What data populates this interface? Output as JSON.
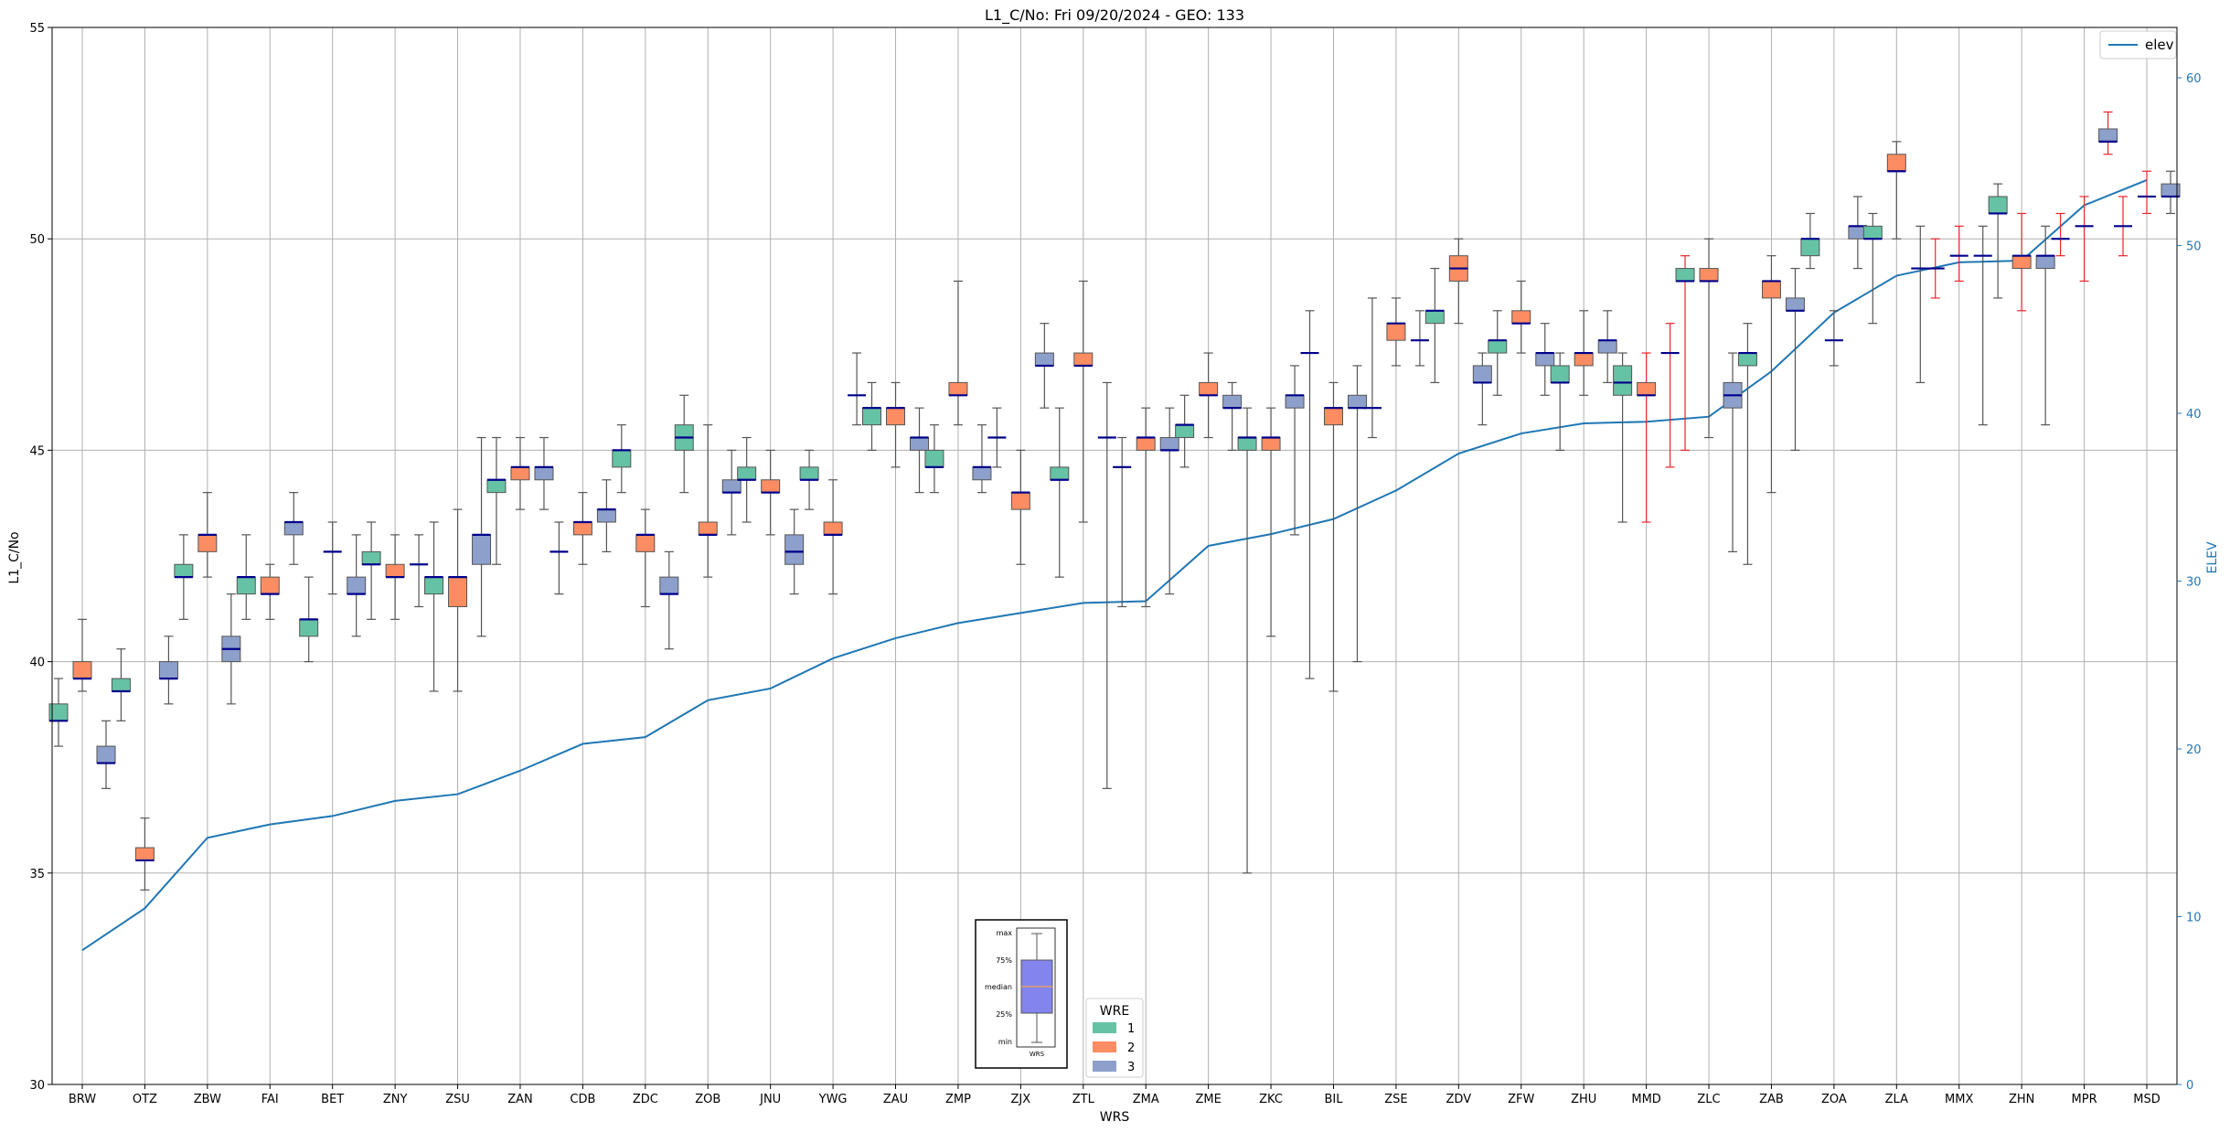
{
  "chart_data": {
    "type": "box",
    "title": "L1_C/No: Fri 09/20/2024 - GEO: 133",
    "xlabel": "WRS",
    "ylabel": "L1_C/No",
    "y2label": "ELEV",
    "ylim": [
      30,
      55
    ],
    "y2lim": [
      0,
      63
    ],
    "yticks": [
      30,
      35,
      40,
      45,
      50,
      55
    ],
    "y2ticks": [
      0,
      10,
      20,
      30,
      40,
      50,
      60
    ],
    "grid": true,
    "categories": [
      "BRW",
      "OTZ",
      "ZBW",
      "FAI",
      "BET",
      "ZNY",
      "ZSU",
      "ZAN",
      "CDB",
      "ZDC",
      "ZOB",
      "JNU",
      "YWG",
      "ZAU",
      "ZMP",
      "ZJX",
      "ZTL",
      "ZMA",
      "ZME",
      "ZKC",
      "BIL",
      "ZSE",
      "ZDV",
      "ZFW",
      "ZHU",
      "MMD",
      "ZLC",
      "ZAB",
      "ZOA",
      "ZLA",
      "MMX",
      "ZHN",
      "MPR",
      "MSD"
    ],
    "elev": {
      "name": "elev",
      "values": [
        8.0,
        10.5,
        14.7,
        15.5,
        16.0,
        16.9,
        17.3,
        18.7,
        20.3,
        20.7,
        22.9,
        23.6,
        25.4,
        26.6,
        27.5,
        28.1,
        28.7,
        28.8,
        32.1,
        32.8,
        33.7,
        35.4,
        37.6,
        38.8,
        39.4,
        39.5,
        39.8,
        42.5,
        46.0,
        48.2,
        49.0,
        49.1,
        52.4,
        53.9
      ]
    },
    "wre_colors": {
      "1": "#66c2a5",
      "2": "#fc8d62",
      "3": "#8da0cb"
    },
    "elev_color": "#1f77b4",
    "red_whisker_color": "#e8262b",
    "legend_elev": {
      "label": "elev",
      "placement": "top-right"
    },
    "legend_wre": {
      "title": "WRE",
      "entries": [
        "1",
        "2",
        "3"
      ],
      "placement": "bottom-center"
    },
    "key_labels": [
      "max",
      "75%",
      "median",
      "25%",
      "min"
    ],
    "key_xlabel": "WRS",
    "series": [
      {
        "cat": "BRW",
        "wre": 1,
        "min": 38.0,
        "q1": 38.6,
        "med": 38.6,
        "q3": 39.0,
        "max": 39.6
      },
      {
        "cat": "BRW",
        "wre": 2,
        "min": 39.3,
        "q1": 39.6,
        "med": 39.6,
        "q3": 40.0,
        "max": 41.0
      },
      {
        "cat": "BRW",
        "wre": 3,
        "min": 37.0,
        "q1": 37.6,
        "med": 37.6,
        "q3": 38.0,
        "max": 38.6
      },
      {
        "cat": "OTZ",
        "wre": 1,
        "min": 38.6,
        "q1": 39.3,
        "med": 39.3,
        "q3": 39.6,
        "max": 40.3
      },
      {
        "cat": "OTZ",
        "wre": 2,
        "min": 34.6,
        "q1": 35.3,
        "med": 35.3,
        "q3": 35.6,
        "max": 36.3
      },
      {
        "cat": "OTZ",
        "wre": 3,
        "min": 39.0,
        "q1": 39.6,
        "med": 39.6,
        "q3": 40.0,
        "max": 40.6
      },
      {
        "cat": "ZBW",
        "wre": 1,
        "min": 41.0,
        "q1": 42.0,
        "med": 42.0,
        "q3": 42.3,
        "max": 43.0
      },
      {
        "cat": "ZBW",
        "wre": 2,
        "min": 42.0,
        "q1": 42.6,
        "med": 43.0,
        "q3": 43.0,
        "max": 44.0
      },
      {
        "cat": "ZBW",
        "wre": 3,
        "min": 39.0,
        "q1": 40.0,
        "med": 40.3,
        "q3": 40.6,
        "max": 41.6
      },
      {
        "cat": "FAI",
        "wre": 1,
        "min": 41.0,
        "q1": 41.6,
        "med": 42.0,
        "q3": 42.0,
        "max": 43.0
      },
      {
        "cat": "FAI",
        "wre": 2,
        "min": 41.0,
        "q1": 41.6,
        "med": 41.6,
        "q3": 42.0,
        "max": 42.3
      },
      {
        "cat": "FAI",
        "wre": 3,
        "min": 42.3,
        "q1": 43.0,
        "med": 43.3,
        "q3": 43.3,
        "max": 44.0
      },
      {
        "cat": "BET",
        "wre": 1,
        "min": 40.0,
        "q1": 40.6,
        "med": 41.0,
        "q3": 41.0,
        "max": 42.0
      },
      {
        "cat": "BET",
        "wre": 2,
        "min": 41.6,
        "q1": 42.6,
        "med": 42.6,
        "q3": 42.6,
        "max": 43.3
      },
      {
        "cat": "BET",
        "wre": 3,
        "min": 40.6,
        "q1": 41.6,
        "med": 41.6,
        "q3": 42.0,
        "max": 43.0
      },
      {
        "cat": "ZNY",
        "wre": 1,
        "min": 41.0,
        "q1": 42.3,
        "med": 42.3,
        "q3": 42.6,
        "max": 43.3
      },
      {
        "cat": "ZNY",
        "wre": 2,
        "min": 41.0,
        "q1": 42.0,
        "med": 42.0,
        "q3": 42.3,
        "max": 43.0
      },
      {
        "cat": "ZNY",
        "wre": 3,
        "min": 41.3,
        "q1": 42.3,
        "med": 42.3,
        "q3": 42.3,
        "max": 43.0
      },
      {
        "cat": "ZSU",
        "wre": 1,
        "min": 39.3,
        "q1": 41.6,
        "med": 42.0,
        "q3": 42.0,
        "max": 43.3
      },
      {
        "cat": "ZSU",
        "wre": 2,
        "min": 39.3,
        "q1": 41.3,
        "med": 42.0,
        "q3": 42.0,
        "max": 43.6
      },
      {
        "cat": "ZSU",
        "wre": 3,
        "min": 40.6,
        "q1": 42.3,
        "med": 43.0,
        "q3": 43.0,
        "max": 45.3
      },
      {
        "cat": "ZAN",
        "wre": 1,
        "min": 42.3,
        "q1": 44.0,
        "med": 44.3,
        "q3": 44.3,
        "max": 45.3
      },
      {
        "cat": "ZAN",
        "wre": 2,
        "min": 43.6,
        "q1": 44.3,
        "med": 44.6,
        "q3": 44.6,
        "max": 45.3
      },
      {
        "cat": "ZAN",
        "wre": 3,
        "min": 43.6,
        "q1": 44.3,
        "med": 44.6,
        "q3": 44.6,
        "max": 45.3
      },
      {
        "cat": "CDB",
        "wre": 1,
        "min": 41.6,
        "q1": 42.6,
        "med": 42.6,
        "q3": 42.6,
        "max": 43.3
      },
      {
        "cat": "CDB",
        "wre": 2,
        "min": 42.3,
        "q1": 43.0,
        "med": 43.3,
        "q3": 43.3,
        "max": 44.0
      },
      {
        "cat": "CDB",
        "wre": 3,
        "min": 42.6,
        "q1": 43.3,
        "med": 43.6,
        "q3": 43.6,
        "max": 44.3
      },
      {
        "cat": "ZDC",
        "wre": 1,
        "min": 44.0,
        "q1": 44.6,
        "med": 45.0,
        "q3": 45.0,
        "max": 45.6
      },
      {
        "cat": "ZDC",
        "wre": 2,
        "min": 41.3,
        "q1": 42.6,
        "med": 43.0,
        "q3": 43.0,
        "max": 43.6
      },
      {
        "cat": "ZDC",
        "wre": 3,
        "min": 40.3,
        "q1": 41.6,
        "med": 41.6,
        "q3": 42.0,
        "max": 42.6
      },
      {
        "cat": "ZOB",
        "wre": 1,
        "min": 44.0,
        "q1": 45.0,
        "med": 45.3,
        "q3": 45.6,
        "max": 46.3
      },
      {
        "cat": "ZOB",
        "wre": 2,
        "min": 42.0,
        "q1": 43.0,
        "med": 43.0,
        "q3": 43.3,
        "max": 45.6
      },
      {
        "cat": "ZOB",
        "wre": 3,
        "min": 43.0,
        "q1": 44.0,
        "med": 44.0,
        "q3": 44.3,
        "max": 45.0
      },
      {
        "cat": "JNU",
        "wre": 1,
        "min": 43.3,
        "q1": 44.3,
        "med": 44.3,
        "q3": 44.6,
        "max": 45.3
      },
      {
        "cat": "JNU",
        "wre": 2,
        "min": 43.0,
        "q1": 44.0,
        "med": 44.0,
        "q3": 44.3,
        "max": 45.0
      },
      {
        "cat": "JNU",
        "wre": 3,
        "min": 41.6,
        "q1": 42.3,
        "med": 42.6,
        "q3": 43.0,
        "max": 43.6
      },
      {
        "cat": "YWG",
        "wre": 1,
        "min": 43.6,
        "q1": 44.3,
        "med": 44.3,
        "q3": 44.6,
        "max": 45.0
      },
      {
        "cat": "YWG",
        "wre": 2,
        "min": 41.6,
        "q1": 43.0,
        "med": 43.0,
        "q3": 43.3,
        "max": 44.3
      },
      {
        "cat": "YWG",
        "wre": 3,
        "min": 45.6,
        "q1": 46.3,
        "med": 46.3,
        "q3": 46.3,
        "max": 47.3
      },
      {
        "cat": "ZAU",
        "wre": 1,
        "min": 45.0,
        "q1": 45.6,
        "med": 46.0,
        "q3": 46.0,
        "max": 46.6
      },
      {
        "cat": "ZAU",
        "wre": 2,
        "min": 44.6,
        "q1": 45.6,
        "med": 46.0,
        "q3": 46.0,
        "max": 46.6
      },
      {
        "cat": "ZAU",
        "wre": 3,
        "min": 44.0,
        "q1": 45.0,
        "med": 45.3,
        "q3": 45.3,
        "max": 46.0
      },
      {
        "cat": "ZMP",
        "wre": 1,
        "min": 44.0,
        "q1": 44.6,
        "med": 44.6,
        "q3": 45.0,
        "max": 45.6
      },
      {
        "cat": "ZMP",
        "wre": 2,
        "min": 45.6,
        "q1": 46.3,
        "med": 46.3,
        "q3": 46.6,
        "max": 49.0
      },
      {
        "cat": "ZMP",
        "wre": 3,
        "min": 44.0,
        "q1": 44.3,
        "med": 44.6,
        "q3": 44.6,
        "max": 45.6
      },
      {
        "cat": "ZJX",
        "wre": 1,
        "min": 44.6,
        "q1": 45.3,
        "med": 45.3,
        "q3": 45.3,
        "max": 46.0
      },
      {
        "cat": "ZJX",
        "wre": 2,
        "min": 42.3,
        "q1": 43.6,
        "med": 44.0,
        "q3": 44.0,
        "max": 45.0
      },
      {
        "cat": "ZJX",
        "wre": 3,
        "min": 46.0,
        "q1": 47.0,
        "med": 47.0,
        "q3": 47.3,
        "max": 48.0
      },
      {
        "cat": "ZTL",
        "wre": 1,
        "min": 42.0,
        "q1": 44.3,
        "med": 44.3,
        "q3": 44.6,
        "max": 46.0
      },
      {
        "cat": "ZTL",
        "wre": 2,
        "min": 43.3,
        "q1": 47.0,
        "med": 47.0,
        "q3": 47.3,
        "max": 49.0
      },
      {
        "cat": "ZTL",
        "wre": 3,
        "min": 37.0,
        "q1": 45.3,
        "med": 45.3,
        "q3": 45.3,
        "max": 46.6
      },
      {
        "cat": "ZMA",
        "wre": 1,
        "min": 41.3,
        "q1": 44.6,
        "med": 44.6,
        "q3": 44.6,
        "max": 45.3
      },
      {
        "cat": "ZMA",
        "wre": 2,
        "min": 41.3,
        "q1": 45.0,
        "med": 45.3,
        "q3": 45.3,
        "max": 46.0
      },
      {
        "cat": "ZMA",
        "wre": 3,
        "min": 41.6,
        "q1": 45.0,
        "med": 45.0,
        "q3": 45.3,
        "max": 46.0
      },
      {
        "cat": "ZME",
        "wre": 1,
        "min": 44.6,
        "q1": 45.3,
        "med": 45.6,
        "q3": 45.6,
        "max": 46.3
      },
      {
        "cat": "ZME",
        "wre": 2,
        "min": 45.3,
        "q1": 46.3,
        "med": 46.3,
        "q3": 46.6,
        "max": 47.3
      },
      {
        "cat": "ZME",
        "wre": 3,
        "min": 45.0,
        "q1": 46.0,
        "med": 46.0,
        "q3": 46.3,
        "max": 46.6
      },
      {
        "cat": "ZKC",
        "wre": 1,
        "min": 35.0,
        "q1": 45.0,
        "med": 45.3,
        "q3": 45.3,
        "max": 46.0
      },
      {
        "cat": "ZKC",
        "wre": 2,
        "min": 40.6,
        "q1": 45.0,
        "med": 45.3,
        "q3": 45.3,
        "max": 46.0
      },
      {
        "cat": "ZKC",
        "wre": 3,
        "min": 43.0,
        "q1": 46.0,
        "med": 46.3,
        "q3": 46.3,
        "max": 47.0
      },
      {
        "cat": "BIL",
        "wre": 1,
        "min": 39.6,
        "q1": 47.3,
        "med": 47.3,
        "q3": 47.3,
        "max": 48.3
      },
      {
        "cat": "BIL",
        "wre": 2,
        "min": 39.3,
        "q1": 45.6,
        "med": 46.0,
        "q3": 46.0,
        "max": 46.6
      },
      {
        "cat": "BIL",
        "wre": 3,
        "min": 40.0,
        "q1": 46.0,
        "med": 46.0,
        "q3": 46.3,
        "max": 47.0
      },
      {
        "cat": "ZSE",
        "wre": 1,
        "min": 45.3,
        "q1": 46.0,
        "med": 46.0,
        "q3": 46.0,
        "max": 48.6
      },
      {
        "cat": "ZSE",
        "wre": 2,
        "min": 47.0,
        "q1": 47.6,
        "med": 48.0,
        "q3": 48.0,
        "max": 48.6
      },
      {
        "cat": "ZSE",
        "wre": 3,
        "min": 47.0,
        "q1": 47.6,
        "med": 47.6,
        "q3": 47.6,
        "max": 48.3
      },
      {
        "cat": "ZDV",
        "wre": 1,
        "min": 46.6,
        "q1": 48.0,
        "med": 48.3,
        "q3": 48.3,
        "max": 49.3
      },
      {
        "cat": "ZDV",
        "wre": 2,
        "min": 48.0,
        "q1": 49.0,
        "med": 49.3,
        "q3": 49.6,
        "max": 50.0
      },
      {
        "cat": "ZDV",
        "wre": 3,
        "min": 45.6,
        "q1": 46.6,
        "med": 46.6,
        "q3": 47.0,
        "max": 47.3
      },
      {
        "cat": "ZFW",
        "wre": 1,
        "min": 46.3,
        "q1": 47.3,
        "med": 47.6,
        "q3": 47.6,
        "max": 48.3
      },
      {
        "cat": "ZFW",
        "wre": 2,
        "min": 47.3,
        "q1": 48.0,
        "med": 48.0,
        "q3": 48.3,
        "max": 49.0
      },
      {
        "cat": "ZFW",
        "wre": 3,
        "min": 46.3,
        "q1": 47.0,
        "med": 47.3,
        "q3": 47.3,
        "max": 48.0
      },
      {
        "cat": "ZHU",
        "wre": 1,
        "min": 45.0,
        "q1": 46.6,
        "med": 46.6,
        "q3": 47.0,
        "max": 47.3
      },
      {
        "cat": "ZHU",
        "wre": 2,
        "min": 46.3,
        "q1": 47.0,
        "med": 47.3,
        "q3": 47.3,
        "max": 48.3
      },
      {
        "cat": "ZHU",
        "wre": 3,
        "min": 46.6,
        "q1": 47.3,
        "med": 47.6,
        "q3": 47.6,
        "max": 48.3
      },
      {
        "cat": "MMD",
        "wre": 1,
        "min": 43.3,
        "q1": 46.3,
        "med": 46.6,
        "q3": 47.0,
        "max": 47.3
      },
      {
        "cat": "MMD",
        "wre": 2,
        "min": 43.3,
        "q1": 46.3,
        "med": 46.3,
        "q3": 46.6,
        "max": 47.3,
        "red": true
      },
      {
        "cat": "MMD",
        "wre": 3,
        "min": 44.6,
        "q1": 47.3,
        "med": 47.3,
        "q3": 47.3,
        "max": 48.0,
        "red": true
      },
      {
        "cat": "ZLC",
        "wre": 1,
        "min": 45.0,
        "q1": 49.0,
        "med": 49.0,
        "q3": 49.3,
        "max": 49.6,
        "red": true
      },
      {
        "cat": "ZLC",
        "wre": 2,
        "min": 45.3,
        "q1": 49.0,
        "med": 49.0,
        "q3": 49.3,
        "max": 50.0
      },
      {
        "cat": "ZLC",
        "wre": 3,
        "min": 42.6,
        "q1": 46.0,
        "med": 46.3,
        "q3": 46.6,
        "max": 47.3
      },
      {
        "cat": "ZAB",
        "wre": 1,
        "min": 42.3,
        "q1": 47.0,
        "med": 47.3,
        "q3": 47.3,
        "max": 48.0
      },
      {
        "cat": "ZAB",
        "wre": 2,
        "min": 44.0,
        "q1": 48.6,
        "med": 49.0,
        "q3": 49.0,
        "max": 49.6
      },
      {
        "cat": "ZAB",
        "wre": 3,
        "min": 45.0,
        "q1": 48.3,
        "med": 48.3,
        "q3": 48.6,
        "max": 49.3
      },
      {
        "cat": "ZOA",
        "wre": 1,
        "min": 49.3,
        "q1": 49.6,
        "med": 50.0,
        "q3": 50.0,
        "max": 50.6
      },
      {
        "cat": "ZOA",
        "wre": 2,
        "min": 47.0,
        "q1": 47.6,
        "med": 47.6,
        "q3": 47.6,
        "max": 48.3
      },
      {
        "cat": "ZOA",
        "wre": 3,
        "min": 49.3,
        "q1": 50.0,
        "med": 50.3,
        "q3": 50.3,
        "max": 51.0
      },
      {
        "cat": "ZLA",
        "wre": 1,
        "min": 48.0,
        "q1": 50.0,
        "med": 50.0,
        "q3": 50.3,
        "max": 50.6
      },
      {
        "cat": "ZLA",
        "wre": 2,
        "min": 50.0,
        "q1": 51.6,
        "med": 51.6,
        "q3": 52.0,
        "max": 52.3
      },
      {
        "cat": "ZLA",
        "wre": 3,
        "min": 46.6,
        "q1": 49.3,
        "med": 49.3,
        "q3": 49.3,
        "max": 50.3
      },
      {
        "cat": "MMX",
        "wre": 1,
        "min": 48.6,
        "q1": 49.3,
        "med": 49.3,
        "q3": 49.3,
        "max": 50.0,
        "red": true
      },
      {
        "cat": "MMX",
        "wre": 2,
        "min": 49.0,
        "q1": 49.6,
        "med": 49.6,
        "q3": 49.6,
        "max": 50.3,
        "red": true
      },
      {
        "cat": "MMX",
        "wre": 3,
        "min": 45.6,
        "q1": 49.6,
        "med": 49.6,
        "q3": 49.6,
        "max": 50.3
      },
      {
        "cat": "ZHN",
        "wre": 1,
        "min": 48.6,
        "q1": 50.6,
        "med": 50.6,
        "q3": 51.0,
        "max": 51.3
      },
      {
        "cat": "ZHN",
        "wre": 2,
        "min": 48.3,
        "q1": 49.3,
        "med": 49.6,
        "q3": 49.6,
        "max": 50.6,
        "red": true
      },
      {
        "cat": "ZHN",
        "wre": 3,
        "min": 45.6,
        "q1": 49.3,
        "med": 49.6,
        "q3": 49.6,
        "max": 50.3
      },
      {
        "cat": "MPR",
        "wre": 1,
        "min": 49.6,
        "q1": 50.0,
        "med": 50.0,
        "q3": 50.0,
        "max": 50.6,
        "red": true
      },
      {
        "cat": "MPR",
        "wre": 2,
        "min": 49.0,
        "q1": 50.3,
        "med": 50.3,
        "q3": 50.3,
        "max": 51.0,
        "red": true
      },
      {
        "cat": "MPR",
        "wre": 3,
        "min": 52.0,
        "q1": 52.3,
        "med": 52.3,
        "q3": 52.6,
        "max": 53.0,
        "red": true
      },
      {
        "cat": "MSD",
        "wre": 1,
        "min": 49.6,
        "q1": 50.3,
        "med": 50.3,
        "q3": 50.3,
        "max": 51.0,
        "red": true
      },
      {
        "cat": "MSD",
        "wre": 2,
        "min": 50.6,
        "q1": 51.0,
        "med": 51.0,
        "q3": 51.0,
        "max": 51.6,
        "red": true
      },
      {
        "cat": "MSD",
        "wre": 3,
        "min": 50.6,
        "q1": 51.0,
        "med": 51.0,
        "q3": 51.3,
        "max": 51.6
      }
    ]
  }
}
